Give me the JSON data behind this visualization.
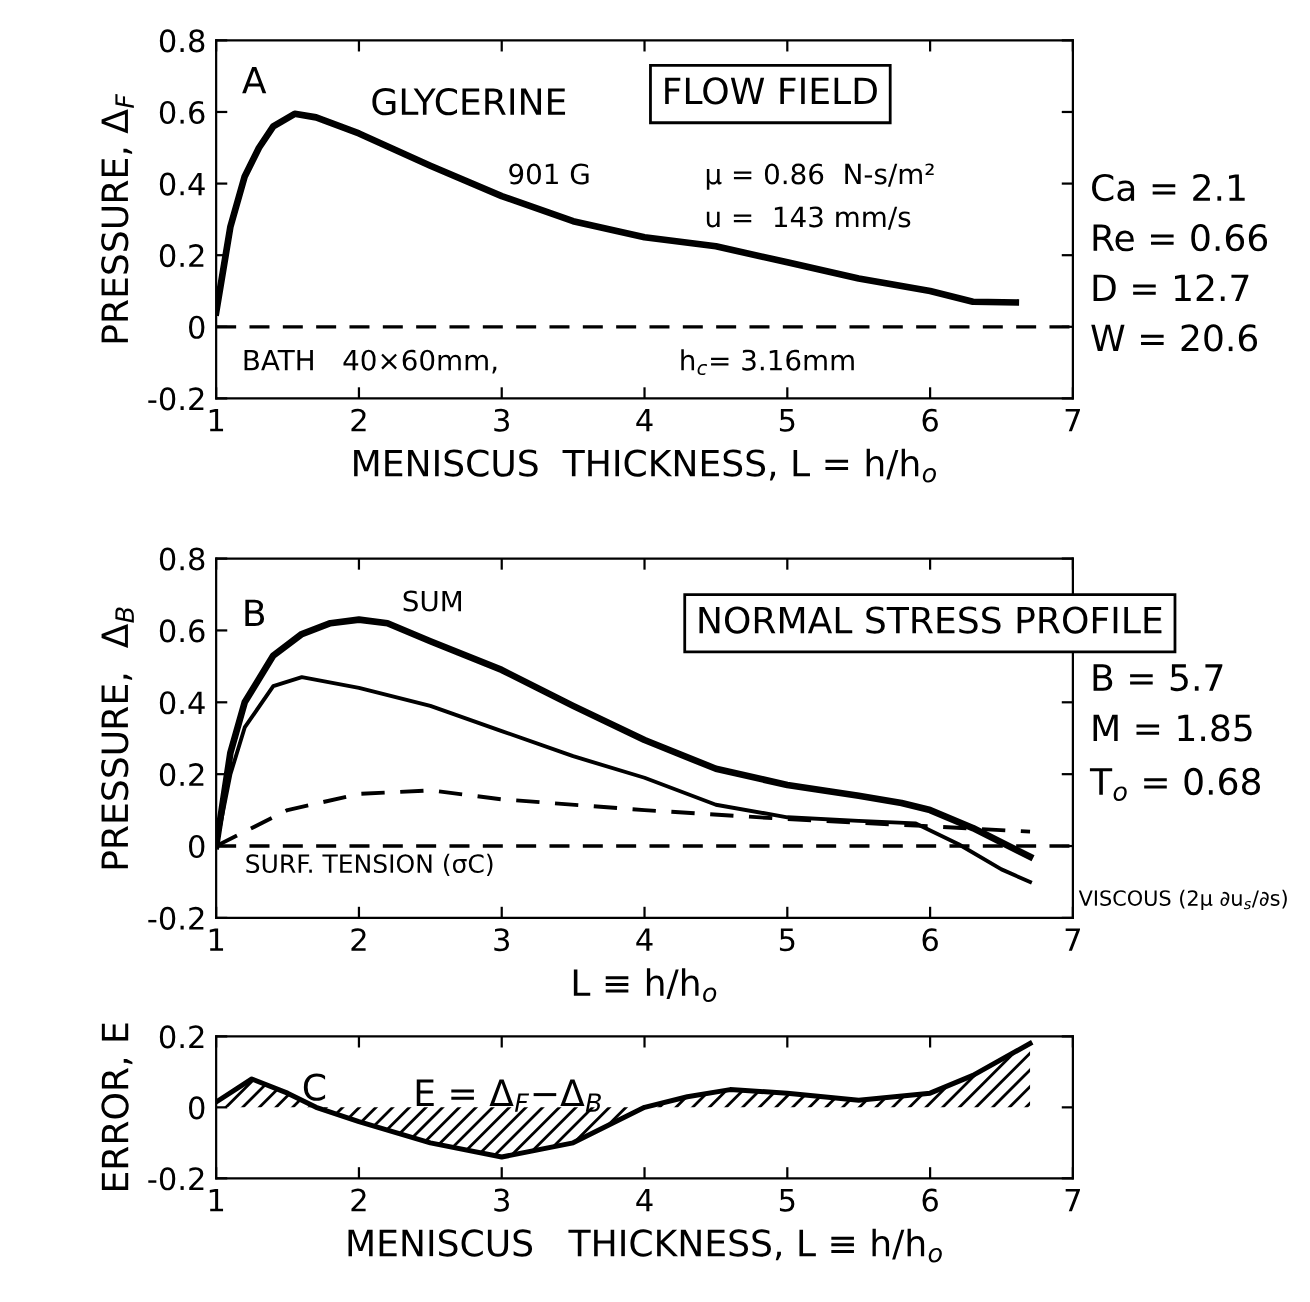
{
  "chart_data": [
    {
      "type": "line",
      "ylabel": "PRESSURE, Δ$_{F}$",
      "xlabel": "MENISCUS  THICKNESS, L = h/h$_{o}$",
      "xlim": [
        1,
        7
      ],
      "xticks": [
        1,
        2,
        3,
        4,
        5,
        6,
        7
      ],
      "ylim": [
        -0.2,
        0.8
      ],
      "yticks": [
        -0.2,
        0,
        0.2,
        0.4,
        0.6,
        0.8
      ],
      "grid": false,
      "legend": false,
      "marker": "none",
      "line_style": "solid",
      "series": [
        {
          "color": "#000000",
          "x": [
            1.0,
            1.1,
            1.2,
            1.3,
            1.4,
            1.55,
            1.7,
            2.0,
            2.5,
            3.0,
            3.5,
            4.0,
            4.5,
            5.0,
            5.5,
            6.0,
            6.3,
            6.6
          ],
          "values": [
            0.04,
            0.28,
            0.42,
            0.5,
            0.56,
            0.595,
            0.585,
            0.54,
            0.45,
            0.365,
            0.295,
            0.25,
            0.225,
            0.18,
            0.135,
            0.1,
            0.07,
            0.068
          ]
        }
      ],
      "ref_lines": [
        {
          "axis": "y",
          "value": 0,
          "line_style": "dashed",
          "color": "#000000"
        }
      ],
      "annotations": [
        "A",
        "GLYCERINE",
        "FLOW FIELD",
        "901 G",
        "μ = 0.86  N-s/m²",
        "u =  143 mm/s",
        "BATH   40×60mm,",
        "h$_{c}$= 3.16mm",
        "Ca = 2.1",
        "Re = 0.66",
        "D = 12.7",
        "W = 20.6"
      ]
    },
    {
      "type": "line",
      "ylabel": "PRESSURE,  Δ$_{B}$",
      "xlabel": "L ≡ h/h$_{o}$",
      "xlim": [
        1,
        7
      ],
      "xticks": [
        1,
        2,
        3,
        4,
        5,
        6,
        7
      ],
      "ylim": [
        -0.2,
        0.8
      ],
      "yticks": [
        -0.2,
        0,
        0.2,
        0.4,
        0.6,
        0.8
      ],
      "grid": false,
      "legend": false,
      "marker": "none",
      "series": [
        {
          "name": "SUM",
          "color": "#000000",
          "line_style": "solid",
          "x": [
            1.0,
            1.1,
            1.2,
            1.4,
            1.6,
            1.8,
            2.0,
            2.2,
            2.5,
            3.0,
            3.5,
            4.0,
            4.5,
            5.0,
            5.5,
            5.8,
            6.0,
            6.3,
            6.7
          ],
          "values": [
            0.0,
            0.26,
            0.4,
            0.53,
            0.59,
            0.62,
            0.63,
            0.62,
            0.57,
            0.49,
            0.39,
            0.295,
            0.215,
            0.17,
            0.14,
            0.12,
            0.1,
            0.05,
            -0.03
          ]
        },
        {
          "name": "VISCOUS (2μ ∂u$_{s}$/∂s)",
          "color": "#000000",
          "line_style": "solid",
          "x": [
            1.0,
            1.1,
            1.2,
            1.4,
            1.6,
            2.0,
            2.5,
            3.0,
            3.5,
            4.0,
            4.5,
            5.0,
            5.5,
            5.9,
            6.2,
            6.5,
            6.7
          ],
          "values": [
            0.0,
            0.2,
            0.33,
            0.445,
            0.47,
            0.44,
            0.39,
            0.32,
            0.25,
            0.19,
            0.115,
            0.08,
            0.07,
            0.063,
            0.005,
            -0.065,
            -0.1
          ]
        },
        {
          "name": "SURF. TENSION (σC)",
          "color": "#000000",
          "line_style": "dashed",
          "x": [
            1.0,
            1.5,
            2.0,
            2.5,
            3.0,
            4.0,
            5.0,
            6.0,
            6.7
          ],
          "values": [
            0.0,
            0.1,
            0.145,
            0.155,
            0.13,
            0.1,
            0.075,
            0.055,
            0.04
          ]
        }
      ],
      "ref_lines": [
        {
          "axis": "y",
          "value": 0,
          "line_style": "dashed",
          "color": "#000000"
        }
      ],
      "annotations": [
        "B",
        "NORMAL STRESS PROFILE",
        "B = 5.7",
        "M = 1.85",
        "T$_{o}$ = 0.68"
      ]
    },
    {
      "type": "area",
      "ylabel": "ERROR, E",
      "xlabel": "MENISCUS   THICKNESS, L ≡ h/h$_{o}$",
      "xlim": [
        1,
        7
      ],
      "xticks": [
        1,
        2,
        3,
        4,
        5,
        6,
        7
      ],
      "ylim": [
        -0.2,
        0.2
      ],
      "yticks": [
        -0.2,
        0,
        0.2
      ],
      "grid": false,
      "legend": false,
      "marker": "none",
      "series": [
        {
          "color": "#000000",
          "x": [
            1.0,
            1.25,
            1.5,
            1.7,
            2.0,
            2.5,
            3.0,
            3.5,
            4.0,
            4.3,
            4.6,
            5.0,
            5.5,
            6.0,
            6.3,
            6.7
          ],
          "values": [
            0.015,
            0.08,
            0.04,
            0.0,
            -0.04,
            -0.1,
            -0.14,
            -0.1,
            0.0,
            0.03,
            0.05,
            0.04,
            0.02,
            0.04,
            0.09,
            0.18
          ]
        }
      ],
      "annotations": [
        "C",
        "E = Δ$_{F}$−Δ$_{B}$"
      ]
    }
  ]
}
